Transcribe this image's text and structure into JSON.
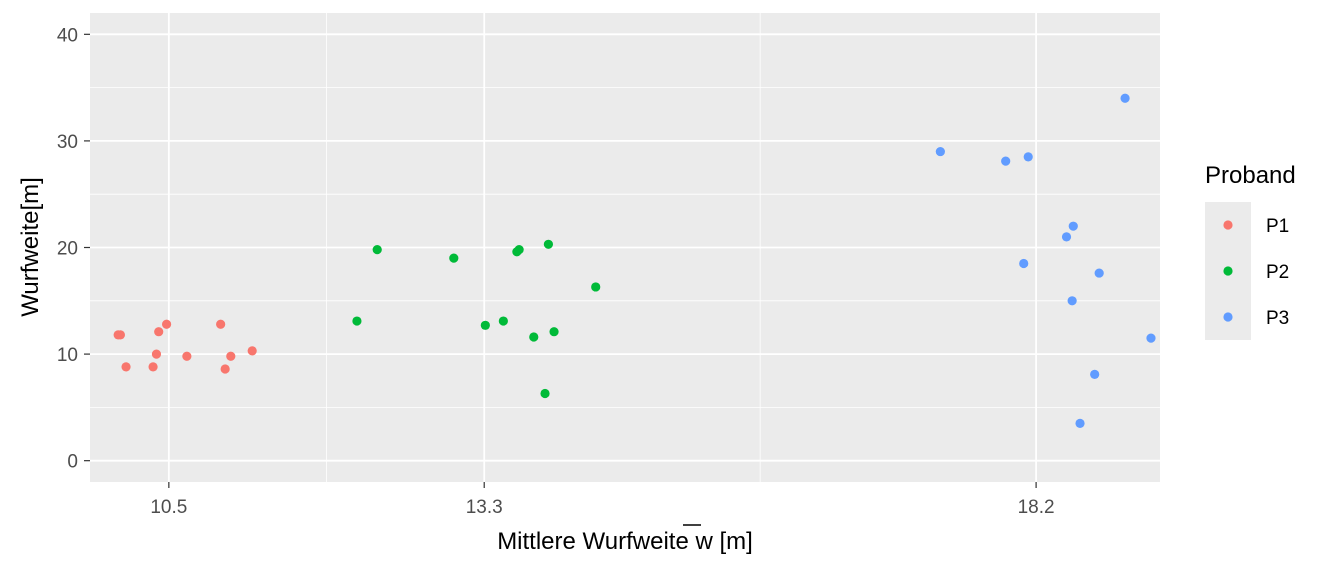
{
  "chart_data": {
    "type": "scatter",
    "xlabel_prefix": "Mittlere Wurfweite ",
    "xlabel_symbol": "w",
    "xlabel_suffix": " [m]",
    "ylabel": "Wurfweite[m]",
    "xlim": [
      9.8,
      19.3
    ],
    "ylim": [
      -2,
      42
    ],
    "x_ticks": [
      10.5,
      13.3,
      18.2
    ],
    "x_tick_labels": [
      "10.5",
      "13.3",
      "18.2"
    ],
    "y_ticks": [
      0,
      10,
      20,
      30,
      40
    ],
    "y_tick_labels": [
      "0",
      "10",
      "20",
      "30",
      "40"
    ],
    "grid": true,
    "legend": {
      "title": "Proband",
      "position": "right"
    },
    "series": [
      {
        "name": "P1",
        "color": "#F8766D",
        "points": [
          [
            10.05,
            11.8
          ],
          [
            10.07,
            11.8
          ],
          [
            10.12,
            8.8
          ],
          [
            10.36,
            8.8
          ],
          [
            10.39,
            10.0
          ],
          [
            10.41,
            12.1
          ],
          [
            10.48,
            12.8
          ],
          [
            10.66,
            9.8
          ],
          [
            10.96,
            12.8
          ],
          [
            11.0,
            8.6
          ],
          [
            11.05,
            9.8
          ],
          [
            11.24,
            10.3
          ]
        ]
      },
      {
        "name": "P2",
        "color": "#00BA38",
        "points": [
          [
            12.17,
            13.1
          ],
          [
            12.35,
            19.8
          ],
          [
            13.03,
            19.0
          ],
          [
            13.31,
            12.7
          ],
          [
            13.47,
            13.1
          ],
          [
            13.59,
            19.6
          ],
          [
            13.61,
            19.8
          ],
          [
            13.74,
            11.6
          ],
          [
            13.84,
            6.3
          ],
          [
            13.87,
            20.3
          ],
          [
            13.92,
            12.1
          ],
          [
            14.29,
            16.3
          ]
        ]
      },
      {
        "name": "P3",
        "color": "#619CFF",
        "points": [
          [
            17.35,
            29.0
          ],
          [
            17.93,
            28.1
          ],
          [
            18.09,
            18.5
          ],
          [
            18.13,
            28.5
          ],
          [
            18.47,
            21.0
          ],
          [
            18.53,
            22.0
          ],
          [
            18.52,
            15.0
          ],
          [
            18.59,
            3.5
          ],
          [
            18.72,
            8.1
          ],
          [
            18.76,
            17.6
          ],
          [
            18.99,
            34.0
          ],
          [
            19.22,
            11.5
          ]
        ]
      }
    ]
  }
}
